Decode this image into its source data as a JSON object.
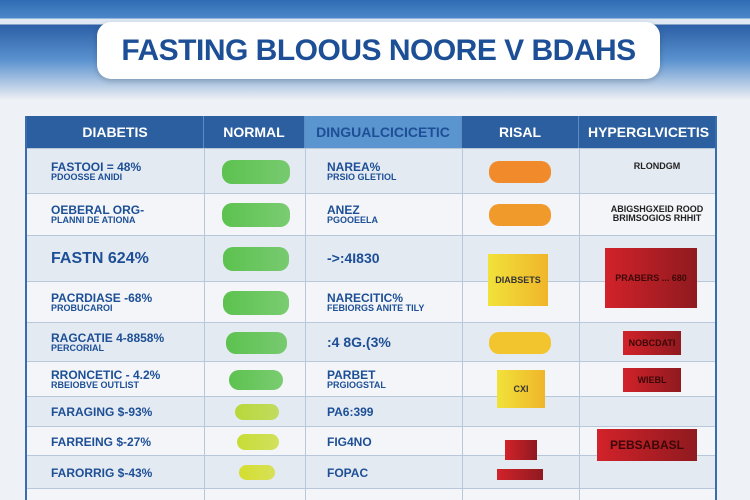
{
  "title": "FASTING BLOOUS NOORE V BDAHS",
  "columns": [
    "DIABETIS",
    "NORMAL",
    "DINGUALCICICETIC",
    "RISAL",
    "HYPERGLVICETIS"
  ],
  "rows": [
    {
      "c1a": "FASTOOI = 48%",
      "c1b": "PDOOSSE ANIDI",
      "c3a": "NAREA%",
      "c3b": "PRSIO GLETIOL",
      "risk": "#f08a2a",
      "hyper": {
        "type": "note",
        "text": "RLONDGM"
      }
    },
    {
      "c1a": "OEBERAL ORG-",
      "c1b": "PLANNI DE ATIONA",
      "c3a": "ANEZ",
      "c3b": "PGOOEELA",
      "risk": "#f19a2c",
      "hyper": {
        "type": "note",
        "text": "ABIGSHGXEID ROOD BRIMSOGIOS RHHIT"
      }
    },
    {
      "c1big": "FASTN 624%",
      "c3big": "->:4I830",
      "riskbox": "DIABSETS",
      "hyper": {
        "type": "box",
        "text": "PRABERS ... 680"
      }
    },
    {
      "c1a": "PACRDIASE -68%",
      "c1b": "PROBUCAROI",
      "c3a": "NARECITIC%",
      "c3b": "FEBIORGS ANITE TILY"
    },
    {
      "c1a": "RAGCATIE 4-8858%",
      "c1b": "PERCORIAL",
      "c3big": ":4 8G.(3%",
      "risk": "#f2c42e",
      "hyper": {
        "type": "box",
        "text": "NOBCDATI"
      }
    },
    {
      "c1a": "RRONCETIC - 4.2%",
      "c1b": "RBEIOBVE OUTLIST",
      "c3a": "PARBET",
      "c3b": "PRGIOGSTAL",
      "riskbox": "CXI",
      "hyper": {
        "type": "box",
        "text": "WIEBL"
      }
    },
    {
      "c1a": "FARAGING $-93%",
      "c3a": "PA6:399"
    },
    {
      "c1a": "FARREING $-27%",
      "c3a": "FIG4NO",
      "hyper": {
        "type": "box",
        "text": "PEBSABASL"
      }
    },
    {
      "c1a": "FARORRIG $-43%",
      "c3a": "FOPAC"
    },
    {}
  ],
  "colors": {
    "header": "#2c5f9f",
    "normal_green": "#5cc24f",
    "risk_red": "#cc2026"
  }
}
